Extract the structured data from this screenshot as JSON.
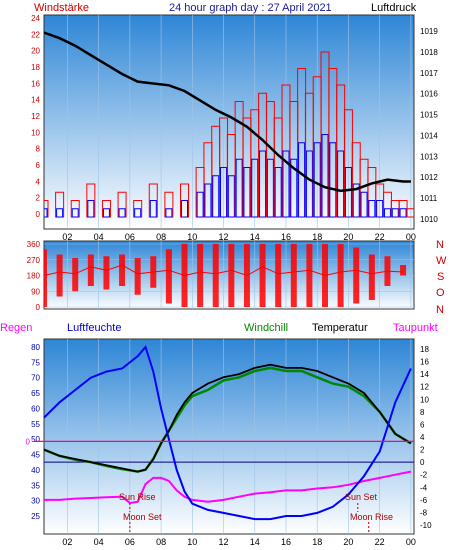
{
  "header": {
    "left_label": "Windstärke",
    "title": "24 hour graph day : 27 April 2021",
    "right_label": "Luftdruck"
  },
  "colors": {
    "wind": "#ff0000",
    "gust": "#0000ff",
    "pressure": "#000000",
    "direction": "#ff0000",
    "humidity": "#0000ff",
    "temperature": "#000000",
    "windchill": "#008800",
    "dewpoint": "#ff00ff",
    "rain": "#ff00ff",
    "zero_line": "#ff0080",
    "freeze_line": "#000080",
    "sun_label": "#aa0000",
    "moon_label": "#aa0000",
    "plot_top": "#2e86d6",
    "plot_bottom": "#ffffff"
  },
  "x_ticks": [
    "02",
    "04",
    "06",
    "08",
    "10",
    "12",
    "14",
    "16",
    "18",
    "20",
    "22",
    "00"
  ],
  "compass": [
    "N",
    "W",
    "S",
    "O",
    "N"
  ],
  "legend": {
    "rain": "Regen",
    "humidity": "Luftfeuchte",
    "windchill": "Windchill",
    "temperature": "Temperatur",
    "dewpoint": "Taupunkt"
  },
  "events": {
    "sun_rise": "Sun Rise",
    "moon_set": "Moon Set",
    "sun_set": "Sun Set",
    "moon_rise": "Moon Rise"
  },
  "chart_data": [
    {
      "type": "line",
      "panel": "wind_pressure",
      "x_unit": "hour",
      "xlim": [
        0.5,
        24.2
      ],
      "left_axis": {
        "ticks": [
          "0",
          "2",
          "4",
          "6",
          "8",
          "10",
          "12",
          "14",
          "16",
          "18",
          "20",
          "22",
          "24"
        ],
        "ylim": [
          0,
          24
        ]
      },
      "right_axis": {
        "ticks": [
          "1010",
          "1011",
          "1012",
          "1013",
          "1014",
          "1015",
          "1016",
          "1017",
          "1018",
          "1019"
        ],
        "ylim": [
          1009.7,
          1020.2
        ]
      },
      "series": [
        {
          "name": "Luftdruck",
          "axis": "right",
          "x": [
            0.5,
            1.5,
            2.5,
            3.5,
            4.5,
            5.5,
            6.5,
            7.5,
            8.5,
            9.5,
            10.5,
            11.5,
            12.5,
            13.5,
            14.5,
            15.5,
            16.5,
            17.5,
            18.5,
            19.5,
            20.5,
            21.5,
            22.5,
            23.5,
            24.0
          ],
          "values": [
            1019.8,
            1019.5,
            1019.1,
            1018.6,
            1018.1,
            1017.6,
            1017.2,
            1017.1,
            1017.0,
            1016.7,
            1016.2,
            1015.7,
            1015.3,
            1014.8,
            1014.1,
            1013.3,
            1012.6,
            1012.0,
            1011.6,
            1011.4,
            1011.5,
            1011.8,
            1012.0,
            1011.9,
            1011.9
          ]
        },
        {
          "name": "Windstärke",
          "axis": "left",
          "x": [
            0.5,
            1.5,
            2.5,
            3.5,
            4.5,
            5.5,
            6.5,
            7.5,
            8.5,
            9.5,
            10.5,
            11.0,
            11.5,
            12.0,
            12.5,
            13.0,
            13.5,
            14.0,
            14.5,
            15.0,
            15.5,
            16.0,
            16.5,
            17.0,
            17.5,
            18.0,
            18.5,
            19.0,
            19.5,
            20.0,
            20.5,
            21.0,
            21.5,
            22.0,
            22.5,
            23.0,
            23.5,
            24.0
          ],
          "values": [
            2,
            3,
            2,
            4,
            2,
            3,
            2,
            4,
            3,
            4,
            6,
            9,
            11,
            12,
            10,
            14,
            12,
            13,
            15,
            14,
            12,
            16,
            14,
            18,
            15,
            17,
            20,
            18,
            16,
            13,
            9,
            7,
            6,
            4,
            3,
            2,
            2,
            1
          ]
        },
        {
          "name": "Böen",
          "axis": "left",
          "x": [
            0.5,
            1.5,
            2.5,
            3.5,
            4.5,
            5.5,
            6.5,
            7.5,
            8.5,
            9.5,
            10.5,
            11.0,
            11.5,
            12.0,
            12.5,
            13.0,
            13.5,
            14.0,
            14.5,
            15.0,
            15.5,
            16.0,
            16.5,
            17.0,
            17.5,
            18.0,
            18.5,
            19.0,
            19.5,
            20.0,
            20.5,
            21.0,
            21.5,
            22.0,
            22.5,
            23.0,
            23.5,
            24.0
          ],
          "values": [
            1,
            1,
            1,
            2,
            1,
            1,
            1,
            2,
            1,
            2,
            3,
            4,
            5,
            6,
            5,
            7,
            6,
            7,
            8,
            7,
            6,
            8,
            7,
            9,
            8,
            9,
            10,
            9,
            8,
            6,
            4,
            3,
            2,
            2,
            1,
            1,
            1,
            0
          ]
        }
      ]
    },
    {
      "type": "line",
      "panel": "wind_direction",
      "x_unit": "hour",
      "xlim": [
        0.5,
        24.2
      ],
      "left_axis": {
        "ticks": [
          "0",
          "90",
          "180",
          "270",
          "360"
        ],
        "ylim": [
          0,
          360
        ]
      },
      "series": [
        {
          "name": "Windrichtung",
          "x": [
            0.5,
            1.5,
            2.5,
            3.5,
            4.5,
            5.5,
            6.5,
            7.5,
            8.5,
            9.5,
            10.5,
            11.5,
            12.5,
            13.5,
            14.5,
            15.5,
            16.5,
            17.5,
            18.5,
            19.5,
            20.5,
            21.5,
            22.5,
            23.5
          ],
          "values": [
            180,
            200,
            190,
            230,
            210,
            240,
            190,
            200,
            210,
            180,
            200,
            190,
            210,
            180,
            230,
            190,
            200,
            210,
            180,
            200,
            210,
            190,
            205,
            200
          ],
          "low": [
            0,
            60,
            90,
            120,
            100,
            120,
            70,
            110,
            20,
            0,
            0,
            0,
            0,
            0,
            0,
            0,
            0,
            0,
            0,
            0,
            20,
            40,
            120,
            180
          ],
          "high": [
            330,
            300,
            280,
            300,
            290,
            300,
            280,
            290,
            330,
            360,
            360,
            360,
            360,
            360,
            360,
            360,
            360,
            360,
            360,
            360,
            340,
            300,
            290,
            240
          ]
        }
      ]
    },
    {
      "type": "line",
      "panel": "temperature_humidity",
      "x_unit": "hour",
      "xlim": [
        0.5,
        24.2
      ],
      "left_axis": {
        "ticks": [
          "25",
          "30",
          "35",
          "40",
          "45",
          "50",
          "55",
          "60",
          "65",
          "70",
          "75",
          "80"
        ],
        "ylim": [
          20,
          82
        ]
      },
      "right_axis": {
        "ticks": [
          "-10",
          "-8",
          "-6",
          "-4",
          "-2",
          "0",
          "2",
          "4",
          "6",
          "8",
          "10",
          "12",
          "14",
          "16",
          "18"
        ],
        "ylim": [
          -11,
          19
        ]
      },
      "series": [
        {
          "name": "Luftfeuchte",
          "axis": "left",
          "x": [
            0.5,
            1.5,
            2.5,
            3.5,
            4.5,
            5.5,
            6.5,
            7.0,
            7.5,
            8.0,
            8.5,
            9.0,
            9.5,
            10.0,
            11.0,
            12.0,
            13.0,
            14.0,
            15.0,
            16.0,
            17.0,
            18.0,
            19.0,
            20.0,
            21.0,
            22.0,
            23.0,
            24.0
          ],
          "values": [
            57,
            62,
            66,
            70,
            72,
            73,
            77,
            80,
            72,
            60,
            50,
            40,
            33,
            29,
            27,
            26,
            25,
            24,
            24,
            25,
            25,
            26,
            28,
            32,
            38,
            46,
            62,
            73
          ]
        },
        {
          "name": "Temperatur",
          "axis": "right",
          "x": [
            0.5,
            1.5,
            2.5,
            3.5,
            4.5,
            5.5,
            6.5,
            7.0,
            7.5,
            8.0,
            8.5,
            9.0,
            9.5,
            10.0,
            11.0,
            12.0,
            13.0,
            14.0,
            15.0,
            16.0,
            17.0,
            18.0,
            19.0,
            20.0,
            21.0,
            22.0,
            23.0,
            24.0
          ],
          "values": [
            2.0,
            1.0,
            0.5,
            0.0,
            -0.5,
            -1.0,
            -1.5,
            -1.2,
            0.5,
            3.0,
            5.0,
            7.5,
            9.5,
            11.0,
            12.5,
            13.5,
            14.0,
            15.0,
            15.5,
            15.0,
            15.0,
            14.5,
            13.5,
            12.5,
            11.0,
            8.0,
            4.5,
            3.0
          ]
        },
        {
          "name": "Windchill",
          "axis": "right",
          "x": [
            0.5,
            1.5,
            2.5,
            3.5,
            4.5,
            5.5,
            6.5,
            7.0,
            7.5,
            8.0,
            8.5,
            9.0,
            9.5,
            10.0,
            11.0,
            12.0,
            13.0,
            14.0,
            15.0,
            16.0,
            17.0,
            18.0,
            19.0,
            20.0,
            21.0,
            22.0,
            23.0,
            24.0
          ],
          "values": [
            2.0,
            1.0,
            0.4,
            0.0,
            -0.6,
            -1.1,
            -1.5,
            -1.2,
            0.5,
            3.0,
            5.0,
            7.0,
            9.0,
            10.5,
            11.5,
            13.0,
            13.5,
            14.5,
            15.0,
            14.5,
            14.5,
            13.5,
            12.5,
            12.0,
            10.5,
            8.0,
            4.5,
            3.0
          ]
        },
        {
          "name": "Taupunkt",
          "axis": "right",
          "x": [
            0.5,
            1.5,
            2.5,
            3.5,
            4.5,
            5.5,
            6.0,
            6.5,
            7.0,
            7.5,
            8.0,
            8.5,
            9.0,
            9.5,
            10.0,
            11.0,
            12.0,
            13.0,
            14.0,
            15.0,
            16.0,
            17.0,
            18.0,
            19.0,
            20.0,
            21.0,
            22.0,
            23.0,
            24.0
          ],
          "values": [
            -6.0,
            -6.0,
            -5.8,
            -5.7,
            -5.6,
            -5.5,
            -6.5,
            -6.3,
            -3.5,
            -2.5,
            -2.5,
            -3.0,
            -4.5,
            -5.5,
            -6.0,
            -6.3,
            -6.0,
            -5.5,
            -5.0,
            -4.8,
            -4.5,
            -4.5,
            -4.2,
            -4.0,
            -3.6,
            -3.0,
            -2.5,
            -2.0,
            -1.5
          ]
        },
        {
          "name": "Regen",
          "axis": "right",
          "x": [
            0.5,
            24.2
          ],
          "values": [
            0,
            0
          ]
        }
      ]
    }
  ]
}
